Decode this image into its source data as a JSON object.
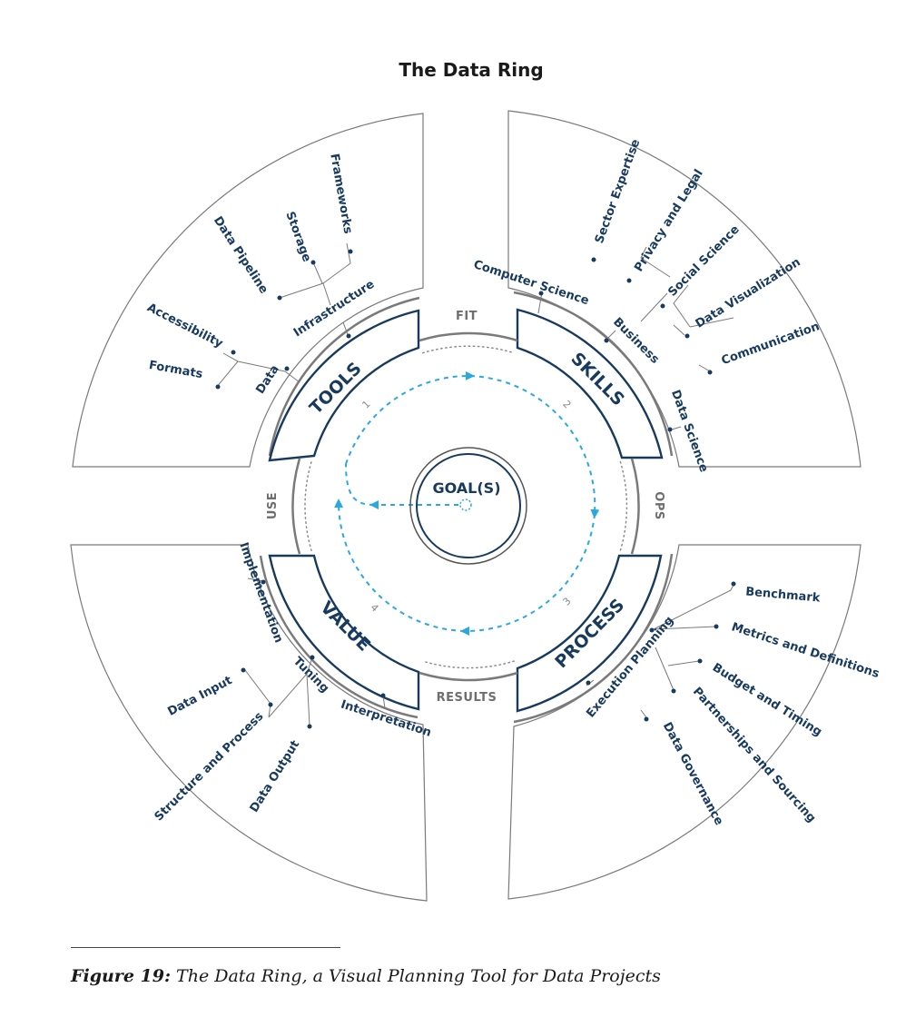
{
  "title": "The Data Ring",
  "center": {
    "label": "GOAL(S)"
  },
  "axes": {
    "top": "FIT",
    "right": "OPS",
    "bottom": "RESULTS",
    "left": "USE"
  },
  "steps": [
    "1",
    "2",
    "3",
    "4"
  ],
  "quadrants": {
    "tools": {
      "label": "TOOLS",
      "subcategories": [
        "Data",
        "Infrastructure"
      ],
      "items": [
        "Formats",
        "Accessibility",
        "Data Pipeline",
        "Storage",
        "Frameworks"
      ]
    },
    "skills": {
      "label": "SKILLS",
      "subcategories": [
        "Computer Science",
        "Business",
        "Data Science"
      ],
      "items": [
        "Sector Expertise",
        "Privacy and Legal",
        "Social Science",
        "Data Visualization",
        "Communication"
      ]
    },
    "process": {
      "label": "PROCESS",
      "subcategories": [
        "Execution Planning"
      ],
      "items": [
        "Benchmark",
        "Metrics and Definitions",
        "Budget and Timing",
        "Partnerships and Sourcing",
        "Data Governance"
      ]
    },
    "value": {
      "label": "VALUE",
      "subcategories": [
        "Implementation",
        "Tuning",
        "Interpretation"
      ],
      "items": [
        "Data Input",
        "Structure and Process",
        "Data Output"
      ]
    }
  },
  "caption": {
    "prefix": "Figure 19:",
    "text": "The Data Ring, a Visual Planning Tool for Data Projects"
  },
  "colors": {
    "navy": "#173a5e",
    "arrow": "#29a9e1",
    "line": "#7a7a7a"
  }
}
